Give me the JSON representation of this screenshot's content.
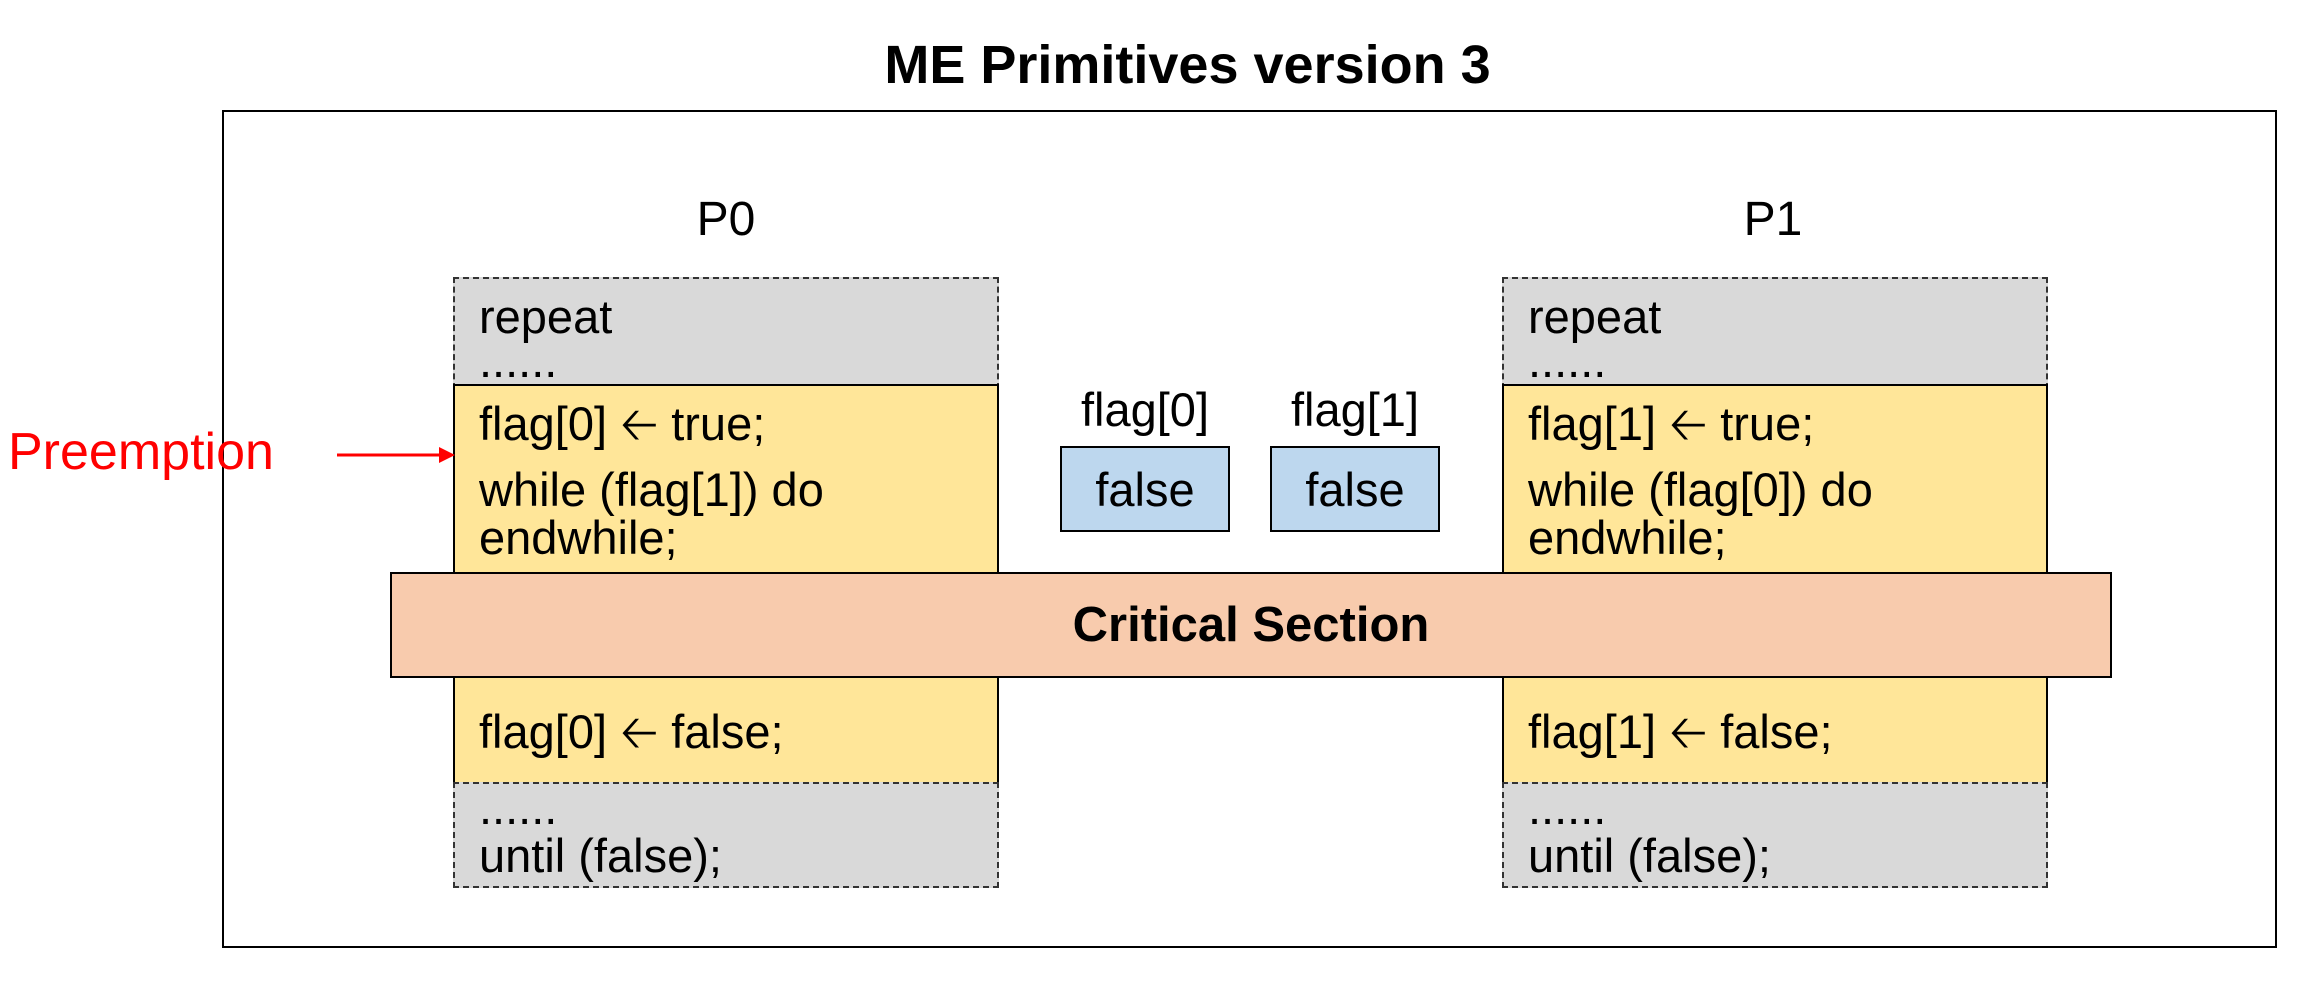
{
  "title": "ME Primitives version 3",
  "processes": [
    {
      "label": "P0",
      "repeat": "repeat",
      "dots_top": "......",
      "entry_line1": "flag[0] 🡠 true;",
      "entry_line2": "while (flag[1]) do",
      "entry_line3": "endwhile;",
      "exit": "flag[0] 🡠 false;",
      "dots_bottom": "......",
      "until": "until (false);"
    },
    {
      "label": "P1",
      "repeat": "repeat",
      "dots_top": "......",
      "entry_line1": "flag[1] 🡠 true;",
      "entry_line2": "while (flag[0]) do",
      "entry_line3": "endwhile;",
      "exit": "flag[1] 🡠 false;",
      "dots_bottom": "......",
      "until": "until (false);"
    }
  ],
  "flags": [
    {
      "name": "flag[0]",
      "value": "false"
    },
    {
      "name": "flag[1]",
      "value": "false"
    }
  ],
  "critical_section": "Critical Section",
  "annotation": {
    "label": "Preemption",
    "color": "#ff0000"
  },
  "colors": {
    "gray_block": "#d9d9d9",
    "entry_exit_block": "#ffe699",
    "critical_section": "#f8cbad",
    "flag_cell": "#bdd7ee"
  }
}
